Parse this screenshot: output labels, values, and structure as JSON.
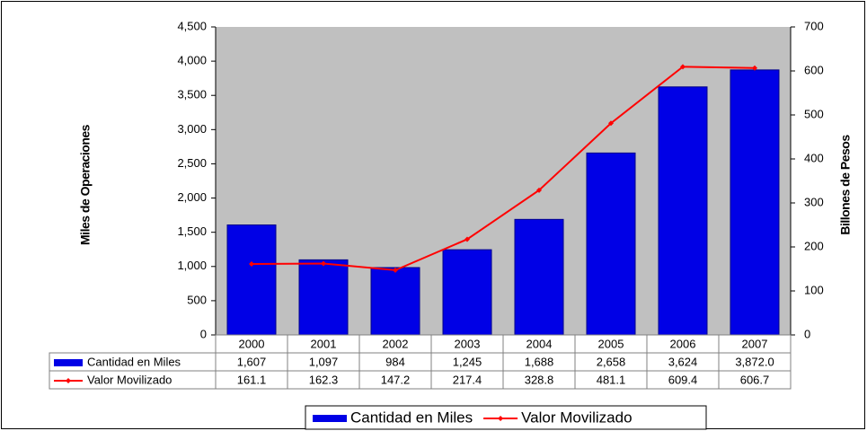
{
  "chart_data": {
    "type": "bar",
    "categories": [
      "2000",
      "2001",
      "2002",
      "2003",
      "2004",
      "2005",
      "2006",
      "2007"
    ],
    "series": [
      {
        "name": "Cantidad en Miles",
        "color": "#0000e6",
        "type": "bar",
        "values": [
          1607,
          1097,
          984,
          1245,
          1688,
          2658,
          3624,
          3872.0
        ],
        "value_labels": [
          "1,607",
          "1,097",
          "984",
          "1,245",
          "1,688",
          "2,658",
          "3,624",
          "3,872.0"
        ]
      },
      {
        "name": "Valor Movilizado",
        "color": "#ff0000",
        "type": "line",
        "axis": "y2",
        "values": [
          161.1,
          162.3,
          147.2,
          217.4,
          328.8,
          481.1,
          609.4,
          606.7
        ]
      }
    ],
    "ylabel": "Miles de Operaciones",
    "y2label": "Billones de Pesos",
    "ylim": [
      0,
      4500
    ],
    "yticks": [
      0,
      500,
      {
        "value": 1000,
        "label": "1,000"
      },
      {
        "value": 1500,
        "label": "1,500"
      },
      {
        "value": 2000,
        "label": "2,000"
      },
      {
        "value": 2500,
        "label": "2,500"
      },
      {
        "value": 3000,
        "label": "3,000"
      },
      {
        "value": 3500,
        "label": "3,500"
      },
      {
        "value": 4000,
        "label": "4,000"
      },
      {
        "value": 4500,
        "label": "4,500"
      }
    ],
    "y2lim": [
      0,
      700
    ],
    "y2ticks": [
      0,
      100,
      200,
      300,
      400,
      500,
      600,
      700
    ],
    "legend": "bottom",
    "plot_background": "#c0c0c0"
  }
}
